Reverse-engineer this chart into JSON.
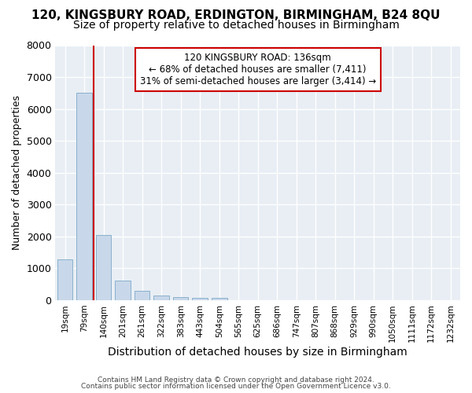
{
  "title1": "120, KINGSBURY ROAD, ERDINGTON, BIRMINGHAM, B24 8QU",
  "title2": "Size of property relative to detached houses in Birmingham",
  "xlabel": "Distribution of detached houses by size in Birmingham",
  "ylabel": "Number of detached properties",
  "footnote1": "Contains HM Land Registry data © Crown copyright and database right 2024.",
  "footnote2": "Contains public sector information licensed under the Open Government Licence v3.0.",
  "annotation_line1": "120 KINGSBURY ROAD: 136sqm",
  "annotation_line2": "← 68% of detached houses are smaller (7,411)",
  "annotation_line3": "31% of semi-detached houses are larger (3,414) →",
  "bar_color": "#c8d8ea",
  "bar_edge_color": "#8ab0cc",
  "categories": [
    "19sqm",
    "79sqm",
    "140sqm",
    "201sqm",
    "261sqm",
    "322sqm",
    "383sqm",
    "443sqm",
    "504sqm",
    "565sqm",
    "625sqm",
    "686sqm",
    "747sqm",
    "807sqm",
    "868sqm",
    "929sqm",
    "990sqm",
    "1050sqm",
    "1111sqm",
    "1172sqm",
    "1232sqm"
  ],
  "values": [
    1280,
    6500,
    2050,
    620,
    300,
    140,
    90,
    60,
    60,
    0,
    0,
    0,
    0,
    0,
    0,
    0,
    0,
    0,
    0,
    0,
    0
  ],
  "ylim": [
    0,
    8000
  ],
  "yticks": [
    0,
    1000,
    2000,
    3000,
    4000,
    5000,
    6000,
    7000,
    8000
  ],
  "background_color": "#ffffff",
  "plot_bg_color": "#e8eef4",
  "grid_color": "#ffffff",
  "annotation_box_facecolor": "#ffffff",
  "annotation_box_edgecolor": "#cc0000",
  "red_line_color": "#cc0000",
  "title1_fontsize": 11,
  "title2_fontsize": 10,
  "ylabel_fontsize": 9,
  "xlabel_fontsize": 10
}
